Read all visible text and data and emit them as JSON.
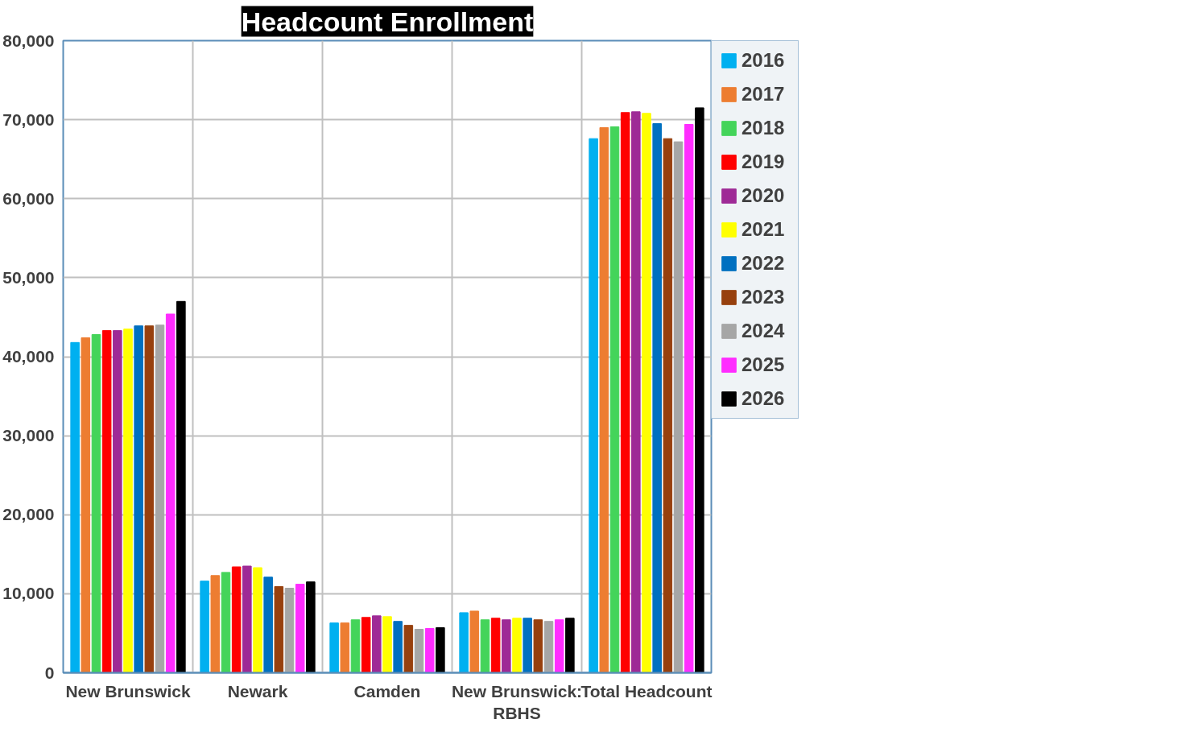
{
  "chart_data": {
    "type": "bar",
    "title": "Headcount Enrollment",
    "categories": [
      "New Brunswick",
      "Newark",
      "Camden",
      "New Brunswick: RBHS",
      "Total Headcount"
    ],
    "ylim": [
      0,
      80000
    ],
    "yticks": [
      0,
      {
        "value": 10000,
        "label": "10,000"
      },
      {
        "value": 20000,
        "label": "20,000"
      },
      {
        "value": 30000,
        "label": "30,000"
      },
      {
        "value": 40000,
        "label": "40,000"
      },
      {
        "value": 50000,
        "label": "50,000"
      },
      {
        "value": 60000,
        "label": "60,000"
      },
      {
        "value": 70000,
        "label": "70,000"
      },
      {
        "value": 80000,
        "label": "80,000"
      }
    ],
    "grid": true,
    "legend": "right",
    "series": [
      {
        "name": "2016",
        "color": "#00b0f0",
        "values": [
          41800,
          11600,
          6300,
          7600,
          67600
        ]
      },
      {
        "name": "2017",
        "color": "#ed7d31",
        "values": [
          42400,
          12300,
          6300,
          7800,
          69000
        ]
      },
      {
        "name": "2018",
        "color": "#44d45a",
        "values": [
          42800,
          12700,
          6700,
          6700,
          69100
        ]
      },
      {
        "name": "2019",
        "color": "#ff0000",
        "values": [
          43300,
          13400,
          7000,
          6900,
          70900
        ]
      },
      {
        "name": "2020",
        "color": "#9e2a96",
        "values": [
          43300,
          13500,
          7200,
          6700,
          71000
        ]
      },
      {
        "name": "2021",
        "color": "#ffff00",
        "values": [
          43500,
          13300,
          7100,
          6900,
          70800
        ]
      },
      {
        "name": "2022",
        "color": "#0070c0",
        "values": [
          43900,
          12100,
          6500,
          6900,
          69500
        ]
      },
      {
        "name": "2023",
        "color": "#97400e",
        "values": [
          43900,
          10900,
          6000,
          6700,
          67600
        ]
      },
      {
        "name": "2024",
        "color": "#a6a6a6",
        "values": [
          44000,
          10700,
          5500,
          6500,
          67200
        ]
      },
      {
        "name": "2025",
        "color": "#ff2cff",
        "values": [
          45400,
          11200,
          5600,
          6700,
          69400
        ]
      },
      {
        "name": "2026",
        "color": "#000000",
        "values": [
          47000,
          11500,
          5700,
          6900,
          71500
        ]
      }
    ]
  }
}
